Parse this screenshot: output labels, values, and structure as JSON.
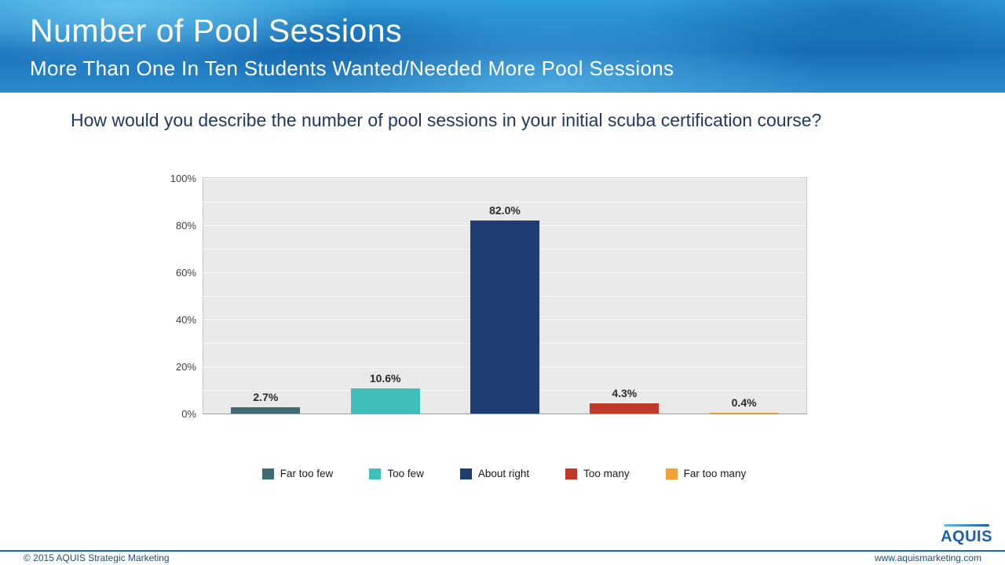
{
  "header": {
    "title": "Number of Pool Sessions",
    "subtitle": "More Than One In Ten Students Wanted/Needed More Pool Sessions"
  },
  "question": "How would you describe the number of pool sessions in your initial scuba certification course?",
  "chart_data": {
    "type": "bar",
    "categories": [
      "Far too few",
      "Too few",
      "About right",
      "Too many",
      "Far too many"
    ],
    "values": [
      2.7,
      10.6,
      82.0,
      4.3,
      0.4
    ],
    "value_labels": [
      "2.7%",
      "10.6%",
      "82.0%",
      "4.3%",
      "0.4%"
    ],
    "colors": [
      "#3e6a74",
      "#40bfba",
      "#1f3c73",
      "#c0392b",
      "#f2a234"
    ],
    "title": "",
    "xlabel": "",
    "ylabel": "",
    "ylim": [
      0,
      100
    ],
    "yticks": [
      "0%",
      "20%",
      "40%",
      "60%",
      "80%",
      "100%"
    ],
    "grid": true,
    "gridline_interval_pct": 10,
    "legend_position": "bottom",
    "plot_background": "#e9e9e9"
  },
  "footer": {
    "copyright": "© 2015 AQUIS Strategic Marketing",
    "website": "www.aquismarketing.com",
    "logo": "AQUIS"
  },
  "colors": {
    "banner_text": "#ffffff",
    "question_text": "#1f3864",
    "footer_accent": "#1668b3",
    "footer_text": "#1f4e79"
  }
}
